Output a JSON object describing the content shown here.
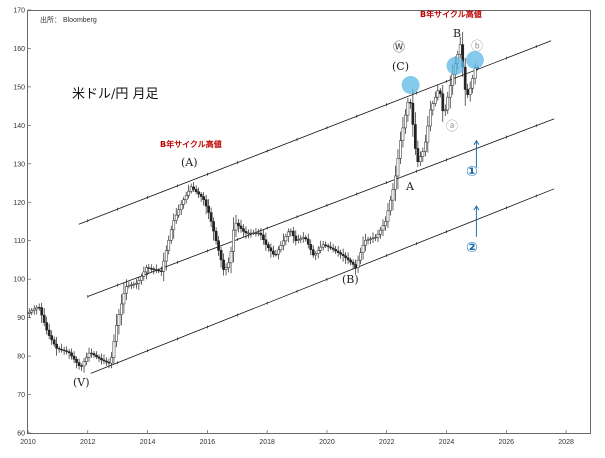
{
  "chart_data": {
    "type": "candlestick",
    "title": "米ドル/円 月足",
    "source": "出所： Bloomberg",
    "x_ticks": [
      "2010",
      "2012",
      "2014",
      "2016",
      "2018",
      "2020",
      "2022",
      "2024",
      "2026",
      "2028"
    ],
    "y_ticks": [
      "60",
      "70",
      "80",
      "90",
      "100",
      "110",
      "120",
      "130",
      "140",
      "150",
      "160",
      "170"
    ],
    "xlim": [
      2010.0,
      2028.8
    ],
    "ylim": [
      60,
      170
    ],
    "grid": false,
    "anchors": [
      [
        2010.0,
        91
      ],
      [
        2010.4,
        93
      ],
      [
        2010.7,
        86
      ],
      [
        2011.0,
        82
      ],
      [
        2011.4,
        81
      ],
      [
        2011.8,
        77
      ],
      [
        2012.1,
        81
      ],
      [
        2012.5,
        79
      ],
      [
        2012.8,
        78
      ],
      [
        2013.0,
        88
      ],
      [
        2013.3,
        98
      ],
      [
        2013.7,
        99
      ],
      [
        2014.0,
        103
      ],
      [
        2014.5,
        102
      ],
      [
        2014.9,
        115
      ],
      [
        2015.2,
        120
      ],
      [
        2015.5,
        124
      ],
      [
        2015.9,
        121
      ],
      [
        2016.1,
        117
      ],
      [
        2016.4,
        108
      ],
      [
        2016.6,
        102
      ],
      [
        2016.8,
        105
      ],
      [
        2016.95,
        115
      ],
      [
        2017.3,
        112
      ],
      [
        2017.8,
        112
      ],
      [
        2018.0,
        109
      ],
      [
        2018.3,
        106
      ],
      [
        2018.8,
        113
      ],
      [
        2019.0,
        110
      ],
      [
        2019.3,
        111
      ],
      [
        2019.6,
        106
      ],
      [
        2019.9,
        109
      ],
      [
        2020.2,
        108
      ],
      [
        2020.6,
        106
      ],
      [
        2020.9,
        104
      ],
      [
        2021.0,
        103
      ],
      [
        2021.3,
        110
      ],
      [
        2021.7,
        111
      ],
      [
        2022.0,
        115
      ],
      [
        2022.3,
        125
      ],
      [
        2022.5,
        136
      ],
      [
        2022.8,
        148
      ],
      [
        2022.95,
        138
      ],
      [
        2023.05,
        130
      ],
      [
        2023.3,
        134
      ],
      [
        2023.5,
        144
      ],
      [
        2023.8,
        150
      ],
      [
        2023.95,
        142
      ],
      [
        2024.1,
        148
      ],
      [
        2024.3,
        155
      ],
      [
        2024.5,
        161
      ],
      [
        2024.7,
        147
      ],
      [
        2024.85,
        150
      ],
      [
        2025.0,
        155
      ]
    ],
    "channels": [
      {
        "name": "upper",
        "points": [
          [
            2011.7,
            114.3
          ],
          [
            2027.5,
            162.0
          ]
        ]
      },
      {
        "name": "middle",
        "points": [
          [
            2012.0,
            95.5
          ],
          [
            2027.6,
            141.7
          ]
        ]
      },
      {
        "name": "lower",
        "points": [
          [
            2012.1,
            75.5
          ],
          [
            2027.6,
            123.5
          ]
        ]
      }
    ],
    "annotations": {
      "red_top": "B年サイクル高値",
      "red_left": "B年サイクル高値",
      "wave_A_paren": "(A)",
      "wave_B_paren": "(B)",
      "wave_C_paren": "(C)",
      "wave_V": "(V)",
      "wave_A": "A",
      "wave_B": "B",
      "circled_W": "Ⓦ",
      "circled_a": "ⓐ",
      "circled_b": "ⓑ",
      "num_1": "①",
      "num_2": "②"
    },
    "highlights": [
      [
        2022.8,
        150.5
      ],
      [
        2024.3,
        155.5
      ],
      [
        2024.95,
        157.0
      ]
    ],
    "arrows": [
      {
        "x": 2025.0,
        "from": 129,
        "to": 136
      },
      {
        "x": 2025.0,
        "from": 111,
        "to": 119
      }
    ]
  },
  "colors": {
    "candle": "#222222",
    "channel": "#111111",
    "highlight": "#5cb8e6",
    "red": "#c00000",
    "blue": "#1f6fb0"
  }
}
